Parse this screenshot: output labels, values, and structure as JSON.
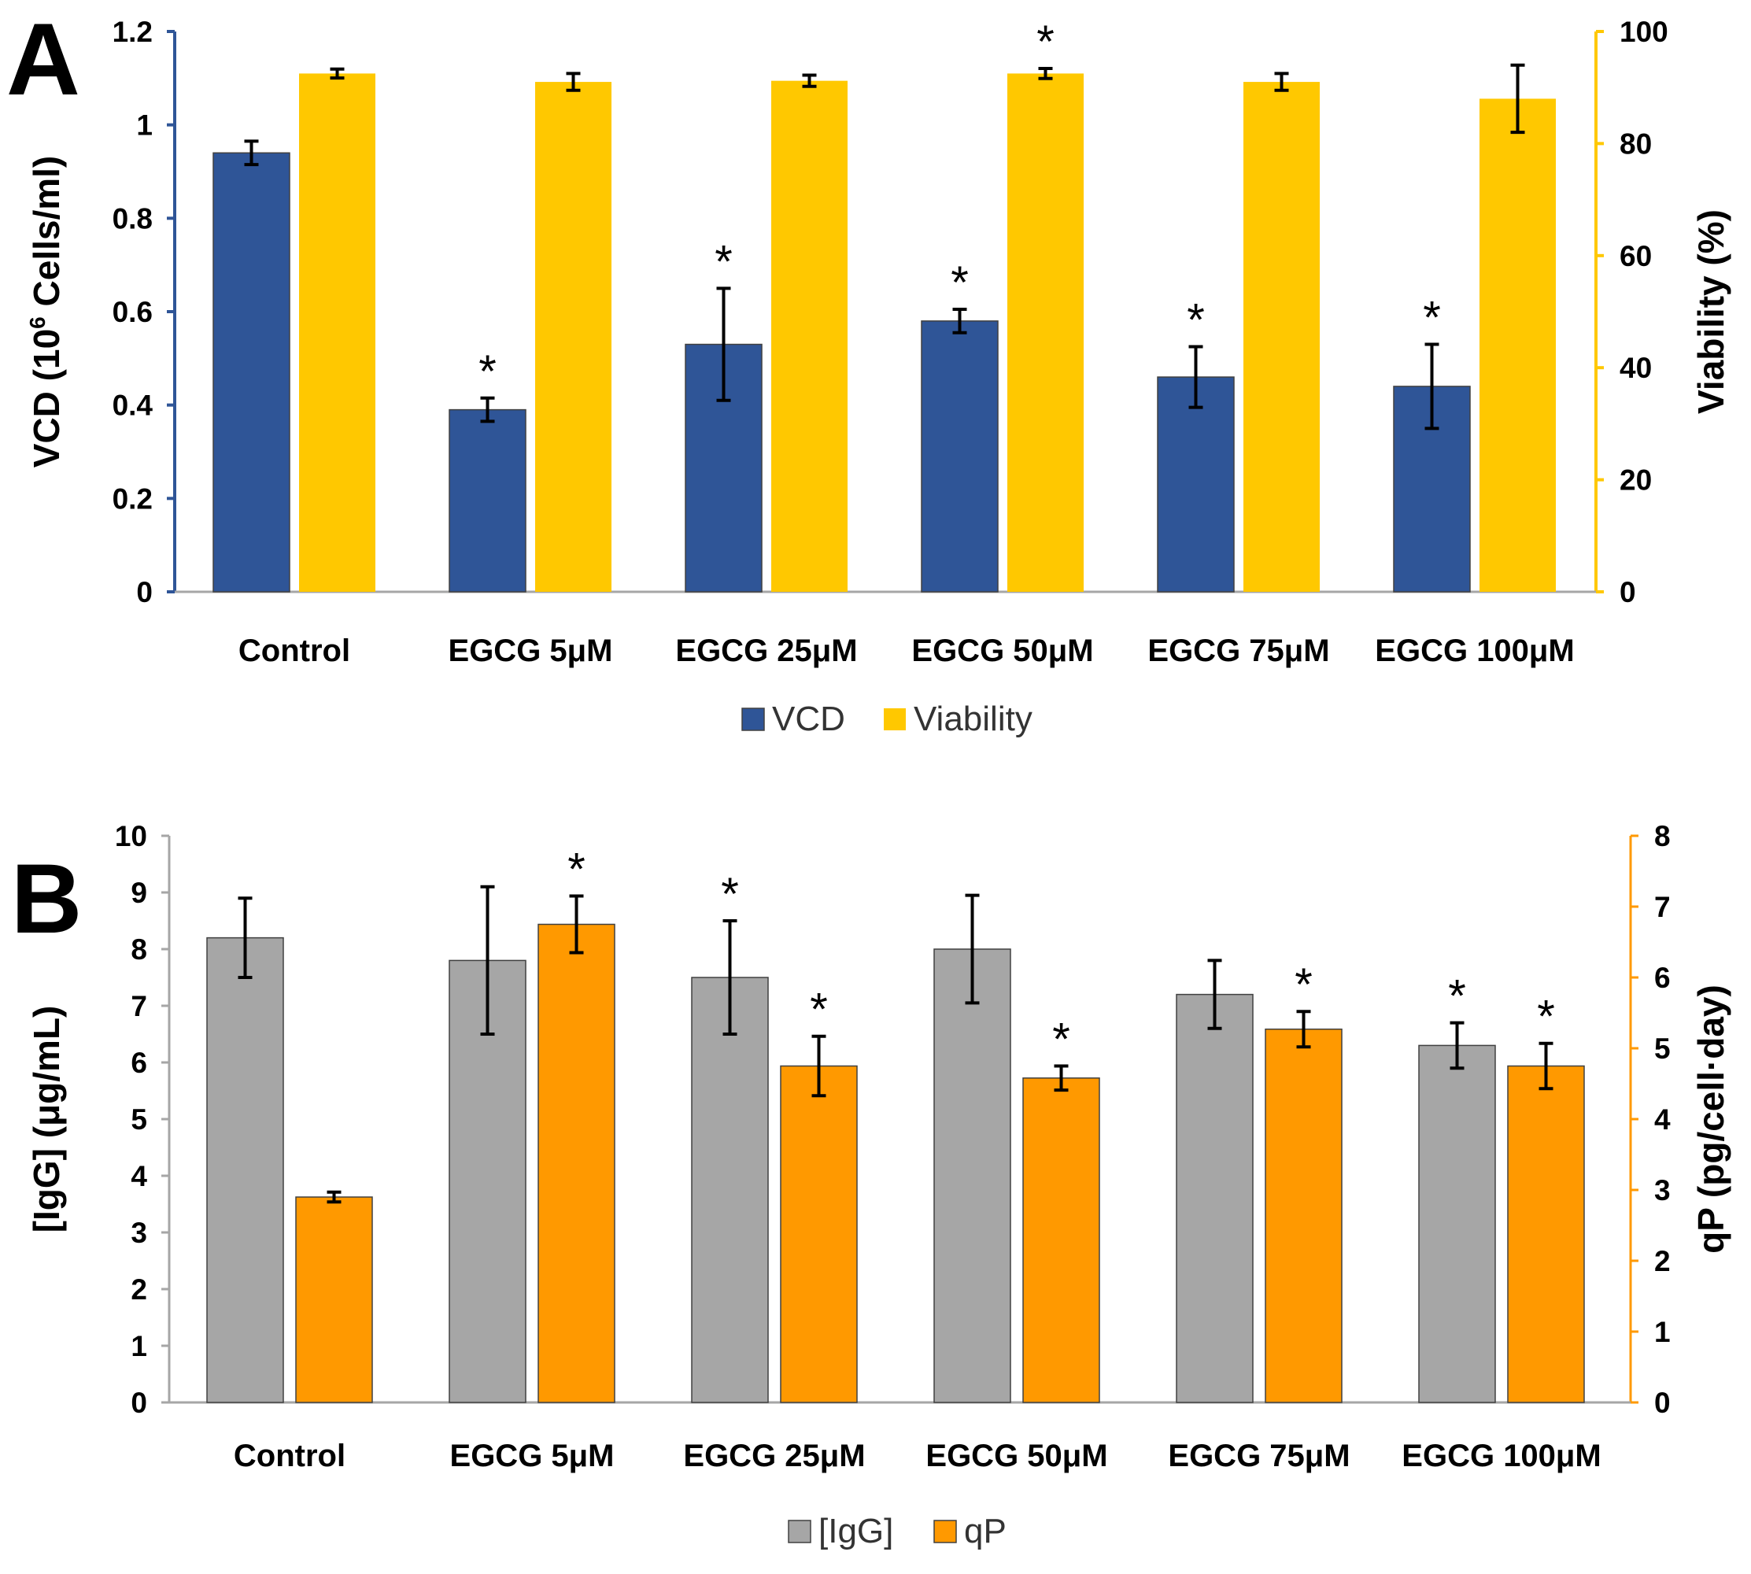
{
  "chart_data": [
    {
      "type": "bar",
      "panel_label": "A",
      "categories": [
        "Control",
        "EGCG 5μM",
        "EGCG 25μM",
        "EGCG 50μM",
        "EGCG 75μM",
        "EGCG 100μM"
      ],
      "ylabel_parts": [
        "VCD (10",
        "6",
        " Cells/ml)"
      ],
      "y2label": "Viability (%)",
      "ylim": [
        0,
        1.2
      ],
      "y_ticks": [
        0,
        0.2,
        0.4,
        0.6,
        0.8,
        1,
        1.2
      ],
      "y_tick_labels": [
        "0",
        "0.2",
        "0.4",
        "0.6",
        "0.8",
        "1",
        "1.2"
      ],
      "y2lim": [
        0,
        100
      ],
      "y2_ticks": [
        0,
        20,
        40,
        60,
        80,
        100
      ],
      "y2_tick_labels": [
        "0",
        "20",
        "40",
        "60",
        "80",
        "100"
      ],
      "series": [
        {
          "name": "VCD",
          "axis": "left",
          "color": "#2f5597",
          "values": [
            0.94,
            0.39,
            0.53,
            0.58,
            0.46,
            0.44
          ],
          "errors": [
            0.025,
            0.025,
            0.12,
            0.025,
            0.065,
            0.09
          ],
          "significant": [
            false,
            true,
            true,
            true,
            true,
            true
          ]
        },
        {
          "name": "Viability",
          "axis": "right",
          "color": "#ffc800",
          "values": [
            92.5,
            91,
            91.2,
            92.5,
            91,
            88
          ],
          "errors": [
            0.8,
            1.5,
            1,
            0.9,
            1.5,
            6
          ],
          "significant": [
            false,
            false,
            false,
            true,
            false,
            false
          ]
        }
      ],
      "legend": [
        "VCD",
        "Viability"
      ],
      "sig_marker": "*",
      "axis_colors": {
        "left": "#2f5597",
        "right": "#ffc800"
      }
    },
    {
      "type": "bar",
      "panel_label": "B",
      "categories": [
        "Control",
        "EGCG 5μM",
        "EGCG 25μM",
        "EGCG 50μM",
        "EGCG 75μM",
        "EGCG 100μM"
      ],
      "ylabel": "[IgG] (μg/mL)",
      "y2label": "qP (pg/cell·day)",
      "ylim": [
        0,
        10
      ],
      "y_ticks": [
        0,
        1,
        2,
        3,
        4,
        5,
        6,
        7,
        8,
        9,
        10
      ],
      "y_tick_labels": [
        "0",
        "1",
        "2",
        "3",
        "4",
        "5",
        "6",
        "7",
        "8",
        "9",
        "10"
      ],
      "y2lim": [
        0,
        8
      ],
      "y2_ticks": [
        0,
        1,
        2,
        3,
        4,
        5,
        6,
        7,
        8
      ],
      "y2_tick_labels": [
        "0",
        "1",
        "2",
        "3",
        "4",
        "5",
        "6",
        "7",
        "8"
      ],
      "series": [
        {
          "name": "[IgG]",
          "axis": "left",
          "color": "#a6a6a6",
          "values": [
            8.2,
            7.8,
            7.5,
            8.0,
            7.2,
            6.3
          ],
          "errors": [
            0.7,
            1.3,
            1.0,
            0.95,
            0.6,
            0.4
          ],
          "significant": [
            false,
            false,
            true,
            false,
            false,
            true
          ]
        },
        {
          "name": "qP",
          "axis": "right",
          "color": "#ff9900",
          "values": [
            2.9,
            6.75,
            4.75,
            4.58,
            5.27,
            4.75
          ],
          "errors": [
            0.07,
            0.4,
            0.42,
            0.17,
            0.25,
            0.32
          ],
          "significant": [
            false,
            true,
            true,
            true,
            true,
            true
          ]
        }
      ],
      "legend": [
        "[IgG]",
        "qP"
      ],
      "sig_marker": "*",
      "axis_colors": {
        "left": "#a6a6a6",
        "right": "#ff9900"
      }
    }
  ]
}
